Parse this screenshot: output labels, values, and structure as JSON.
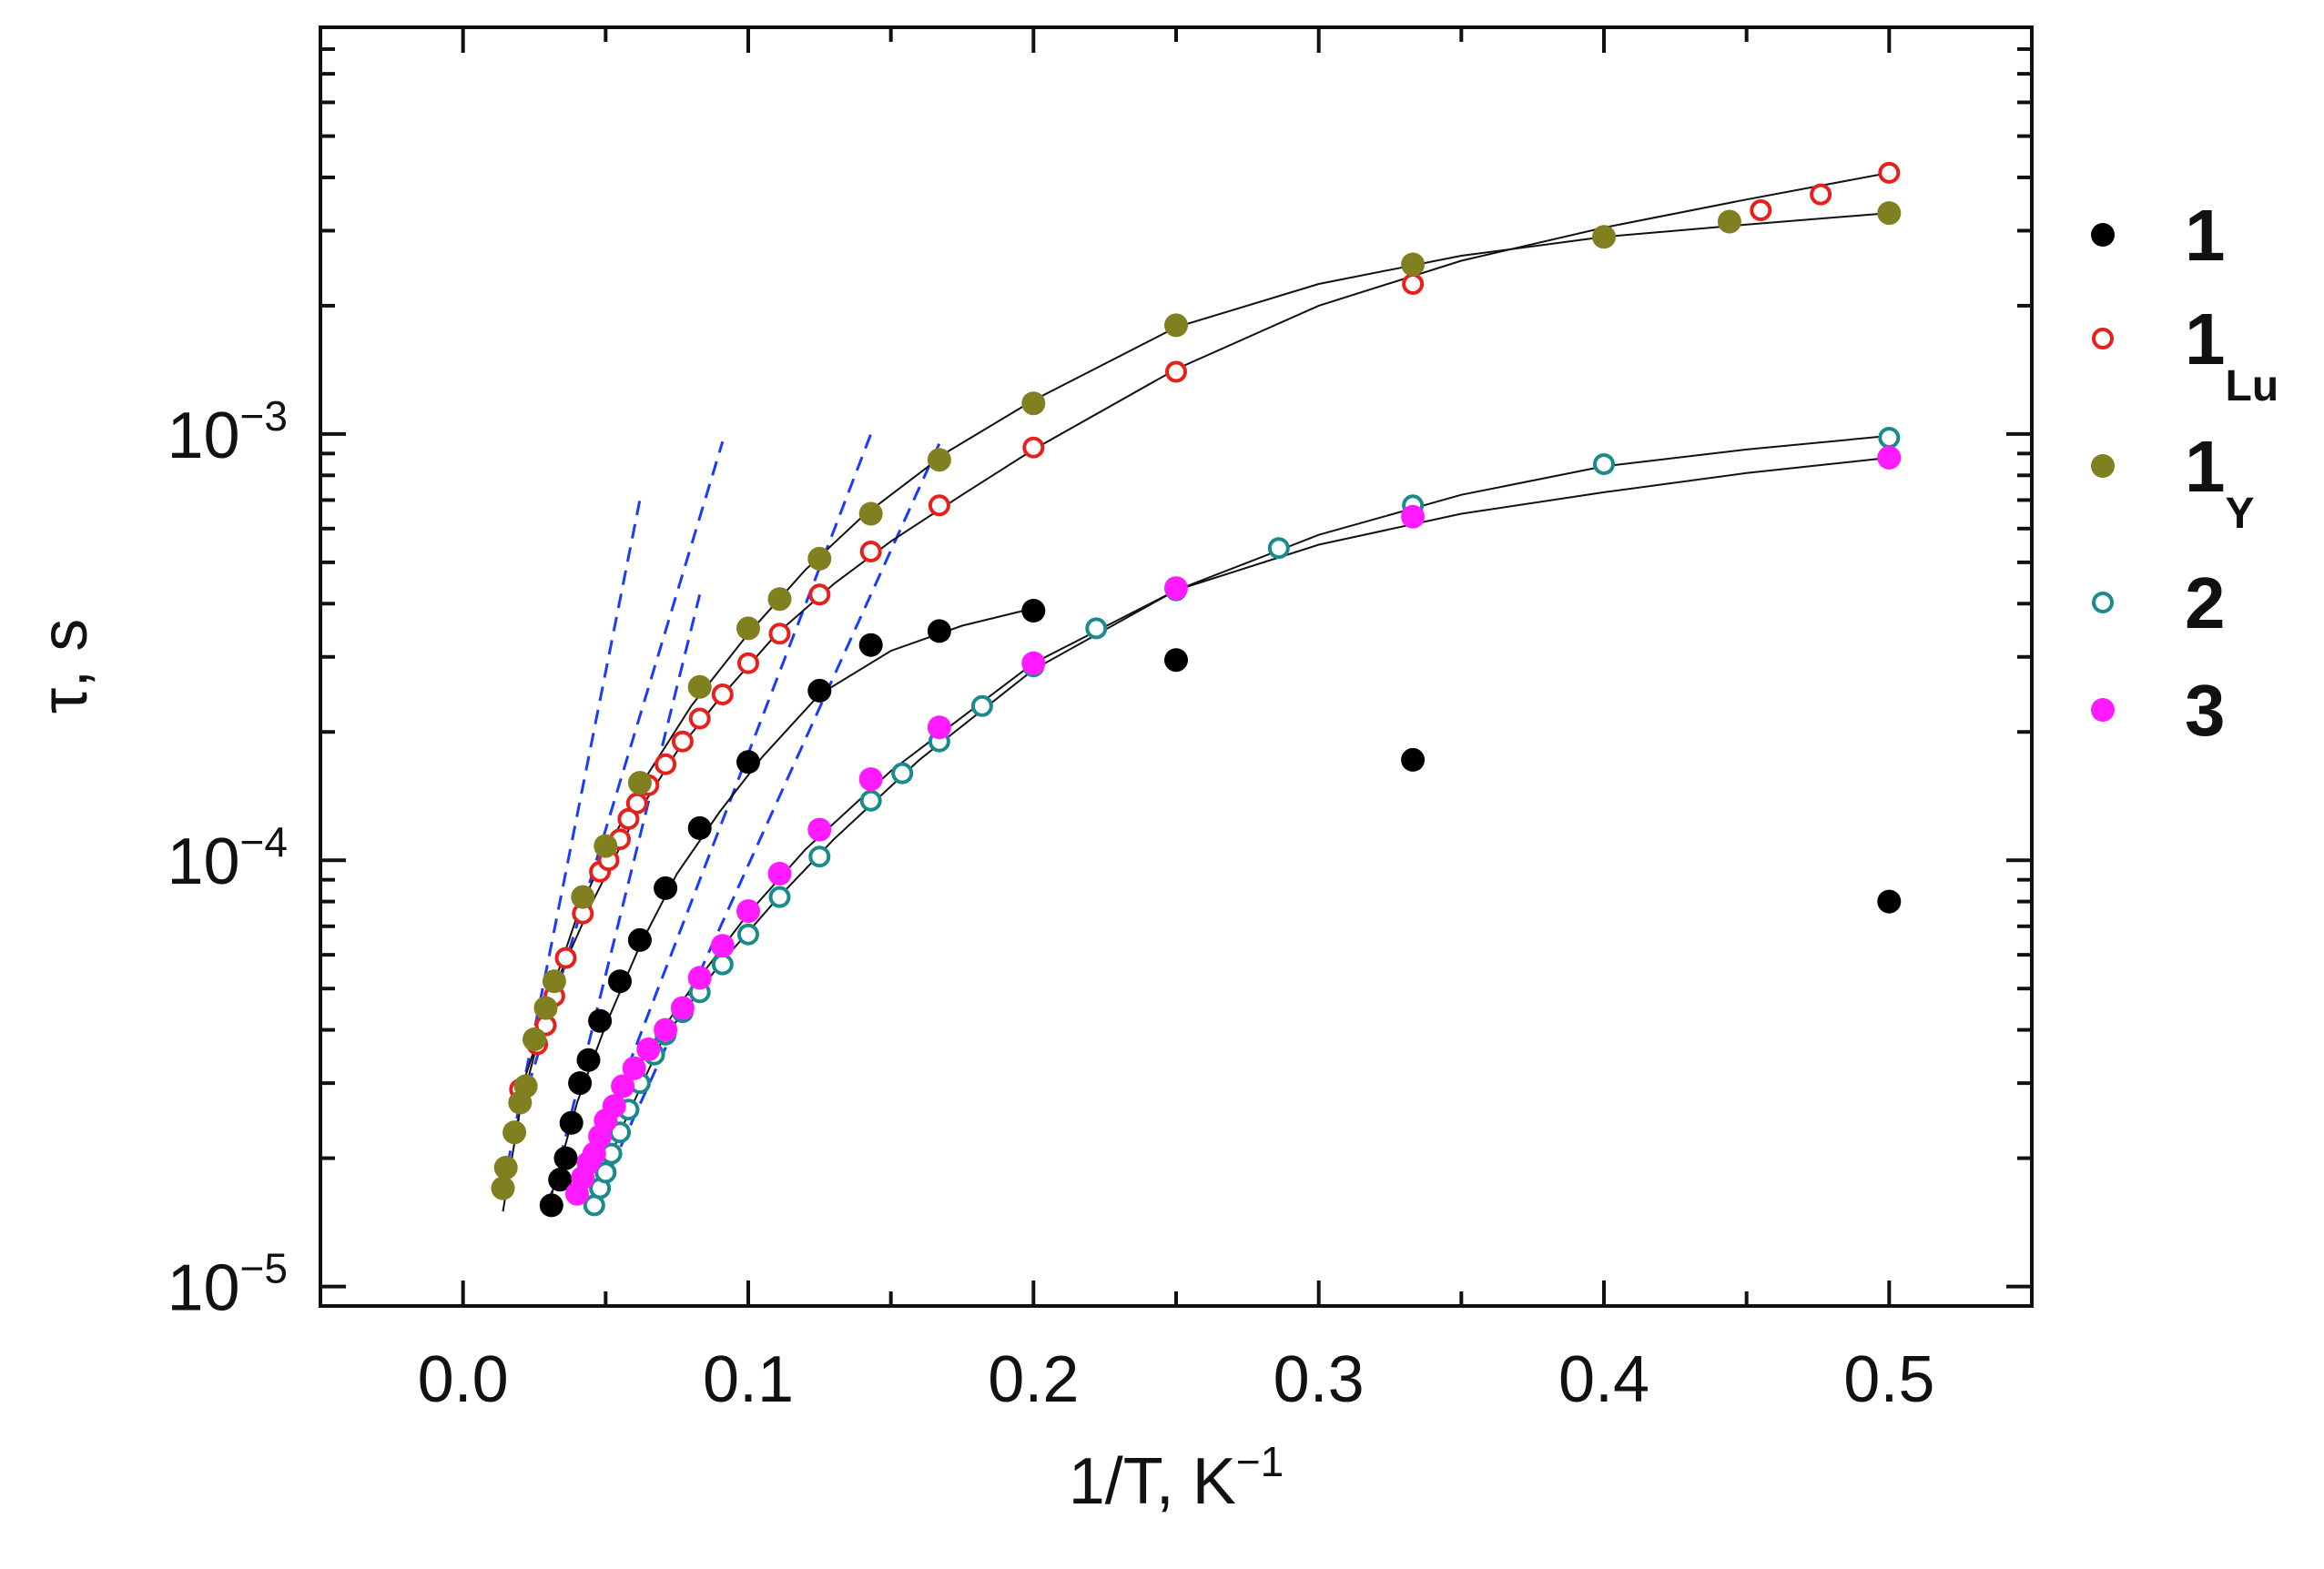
{
  "chart_data": {
    "type": "scatter",
    "title": "",
    "xlabel": {
      "main": "1/T, K",
      "sup": "−1"
    },
    "ylabel": "τ, s",
    "xscale": "linear",
    "yscale": "log",
    "xlim": [
      -0.05,
      0.55
    ],
    "ylim": [
      9e-06,
      0.009
    ],
    "xticks": [
      {
        "value": 0.0,
        "label": "0.0"
      },
      {
        "value": 0.1,
        "label": "0.1"
      },
      {
        "value": 0.2,
        "label": "0.2"
      },
      {
        "value": 0.3,
        "label": "0.3"
      },
      {
        "value": 0.4,
        "label": "0.4"
      },
      {
        "value": 0.5,
        "label": "0.5"
      }
    ],
    "yticks": [
      {
        "value": 1e-05,
        "base": "10",
        "exp": "−5"
      },
      {
        "value": 0.0001,
        "base": "10",
        "exp": "−4"
      },
      {
        "value": 0.001,
        "base": "10",
        "exp": "−3"
      }
    ],
    "legend_position": "right",
    "series": [
      {
        "name": "1",
        "sub": "",
        "marker": "filled",
        "color": "#000000",
        "x": [
          0.031,
          0.034,
          0.036,
          0.038,
          0.041,
          0.044,
          0.048,
          0.055,
          0.062,
          0.071,
          0.083,
          0.1,
          0.125,
          0.143,
          0.167,
          0.2,
          0.25,
          0.333,
          0.5
        ],
        "y": [
          1.55e-05,
          1.78e-05,
          2e-05,
          2.42e-05,
          3e-05,
          3.4e-05,
          4.2e-05,
          5.2e-05,
          6.5e-05,
          8.6e-05,
          0.000119,
          0.00017,
          0.00025,
          0.00032,
          0.000345,
          0.000385,
          0.000295,
          0.000172,
          8e-05
        ]
      },
      {
        "name": "1",
        "sub": "Lu",
        "marker": "open",
        "color": "#e8201c",
        "x": [
          0.02,
          0.026,
          0.029,
          0.032,
          0.036,
          0.042,
          0.048,
          0.051,
          0.055,
          0.058,
          0.061,
          0.065,
          0.071,
          0.077,
          0.083,
          0.091,
          0.1,
          0.111,
          0.125,
          0.143,
          0.167,
          0.2,
          0.25,
          0.333,
          0.455,
          0.476,
          0.5
        ],
        "y": [
          2.9e-05,
          3.7e-05,
          4.1e-05,
          4.8e-05,
          5.9e-05,
          7.5e-05,
          9.4e-05,
          0.0001,
          0.000112,
          0.000125,
          0.000136,
          0.00015,
          0.000168,
          0.00019,
          0.000215,
          0.000245,
          0.00029,
          0.00034,
          0.00042,
          0.00053,
          0.00068,
          0.00093,
          0.0014,
          0.00225,
          0.00335,
          0.00365,
          0.0041
        ]
      },
      {
        "name": "1",
        "sub": "Y",
        "marker": "filled",
        "color": "#808020",
        "x": [
          0.014,
          0.015,
          0.018,
          0.02,
          0.022,
          0.025,
          0.029,
          0.032,
          0.042,
          0.05,
          0.062,
          0.083,
          0.1,
          0.111,
          0.125,
          0.143,
          0.167,
          0.2,
          0.25,
          0.333,
          0.4,
          0.444,
          0.5
        ],
        "y": [
          1.7e-05,
          1.9e-05,
          2.3e-05,
          2.7e-05,
          2.95e-05,
          3.8e-05,
          4.5e-05,
          5.2e-05,
          8.2e-05,
          0.000108,
          0.000152,
          0.000255,
          0.00035,
          0.00041,
          0.00051,
          0.00065,
          0.00087,
          0.00118,
          0.0018,
          0.0025,
          0.0029,
          0.00315,
          0.0033
        ]
      },
      {
        "name": "2",
        "sub": "",
        "marker": "open",
        "color": "#1a8a8a",
        "x": [
          0.046,
          0.048,
          0.05,
          0.052,
          0.055,
          0.058,
          0.062,
          0.067,
          0.071,
          0.077,
          0.083,
          0.091,
          0.1,
          0.111,
          0.125,
          0.143,
          0.154,
          0.167,
          0.182,
          0.2,
          0.222,
          0.25,
          0.286,
          0.333,
          0.4,
          0.5
        ],
        "y": [
          1.55e-05,
          1.7e-05,
          1.85e-05,
          2.05e-05,
          2.3e-05,
          2.6e-05,
          3e-05,
          3.5e-05,
          3.9e-05,
          4.4e-05,
          4.9e-05,
          5.7e-05,
          6.7e-05,
          8.2e-05,
          0.000102,
          0.000138,
          0.00016,
          0.00019,
          0.00023,
          0.000285,
          0.00035,
          0.00043,
          0.00054,
          0.00068,
          0.00085,
          0.00098
        ]
      },
      {
        "name": "3",
        "sub": "",
        "marker": "filled",
        "color": "#ff1aff",
        "x": [
          0.04,
          0.042,
          0.044,
          0.046,
          0.048,
          0.05,
          0.053,
          0.056,
          0.06,
          0.065,
          0.071,
          0.077,
          0.083,
          0.091,
          0.1,
          0.111,
          0.125,
          0.143,
          0.167,
          0.2,
          0.25,
          0.333,
          0.5
        ],
        "y": [
          1.65e-05,
          1.8e-05,
          1.95e-05,
          2.05e-05,
          2.25e-05,
          2.45e-05,
          2.65e-05,
          2.95e-05,
          3.25e-05,
          3.6e-05,
          4e-05,
          4.5e-05,
          5.3e-05,
          6.3e-05,
          7.6e-05,
          9.3e-05,
          0.000118,
          0.000155,
          0.000205,
          0.00029,
          0.000435,
          0.00064,
          0.00088
        ]
      }
    ],
    "fit_curves": [
      {
        "name": "fit-1",
        "x": [
          0.03,
          0.04,
          0.05,
          0.062,
          0.075,
          0.09,
          0.105,
          0.125,
          0.15,
          0.175,
          0.2
        ],
        "y": [
          1.55e-05,
          2.7e-05,
          4.1e-05,
          6.3e-05,
          9.3e-05,
          0.00013,
          0.000175,
          0.000245,
          0.00031,
          0.000355,
          0.00039
        ]
      },
      {
        "name": "fit-1Lu",
        "x": [
          0.018,
          0.025,
          0.035,
          0.045,
          0.06,
          0.075,
          0.09,
          0.11,
          0.13,
          0.15,
          0.175,
          0.2,
          0.25,
          0.3,
          0.35,
          0.4,
          0.45,
          0.5
        ],
        "y": [
          2.6e-05,
          3.6e-05,
          5.6e-05,
          7.9e-05,
          0.000125,
          0.00018,
          0.00024,
          0.00034,
          0.000445,
          0.00056,
          0.00072,
          0.00092,
          0.00142,
          0.002,
          0.00255,
          0.00305,
          0.00355,
          0.0041
        ]
      },
      {
        "name": "fit-1Y",
        "x": [
          0.014,
          0.02,
          0.03,
          0.04,
          0.05,
          0.065,
          0.08,
          0.1,
          0.12,
          0.14,
          0.17,
          0.2,
          0.25,
          0.3,
          0.35,
          0.4,
          0.45,
          0.5
        ],
        "y": [
          1.5e-05,
          2.6e-05,
          4.7e-05,
          7.4e-05,
          0.000105,
          0.00016,
          0.00023,
          0.00034,
          0.00048,
          0.00064,
          0.00091,
          0.0012,
          0.00178,
          0.00225,
          0.00262,
          0.0029,
          0.0031,
          0.0033
        ]
      },
      {
        "name": "fit-2",
        "x": [
          0.045,
          0.055,
          0.07,
          0.09,
          0.11,
          0.13,
          0.16,
          0.2,
          0.25,
          0.3,
          0.35,
          0.4,
          0.45,
          0.5
        ],
        "y": [
          1.5e-05,
          2.3e-05,
          3.8e-05,
          5.7e-05,
          8.1e-05,
          0.000112,
          0.000172,
          0.00028,
          0.00043,
          0.00058,
          0.00072,
          0.00084,
          0.00092,
          0.00099
        ]
      },
      {
        "name": "fit-3",
        "x": [
          0.04,
          0.05,
          0.065,
          0.08,
          0.1,
          0.12,
          0.15,
          0.2,
          0.25,
          0.3,
          0.35,
          0.4,
          0.45,
          0.5
        ],
        "y": [
          1.6e-05,
          2.4e-05,
          3.6e-05,
          5e-05,
          7.5e-05,
          0.000106,
          0.000162,
          0.00029,
          0.00043,
          0.00055,
          0.00065,
          0.00073,
          0.00081,
          0.00088
        ]
      }
    ],
    "dashed_lines": [
      {
        "name": "dash-1Y",
        "color": "#1a3aff",
        "x": [
          0.014,
          0.062
        ],
        "y": [
          1.7e-05,
          0.0007
        ]
      },
      {
        "name": "dash-1Lu",
        "color": "#1a3aff",
        "x": [
          0.018,
          0.091
        ],
        "y": [
          2.3e-05,
          0.00096
        ]
      },
      {
        "name": "dash-1",
        "color": "#1a3aff",
        "x": [
          0.03,
          0.083
        ],
        "y": [
          1.55e-05,
          0.00042
        ]
      },
      {
        "name": "dash-3",
        "color": "#1a3aff",
        "x": [
          0.04,
          0.143
        ],
        "y": [
          1.6e-05,
          0.001
        ]
      },
      {
        "name": "dash-2",
        "color": "#1a3aff",
        "x": [
          0.045,
          0.167
        ],
        "y": [
          1.5e-05,
          0.00095
        ]
      }
    ]
  }
}
